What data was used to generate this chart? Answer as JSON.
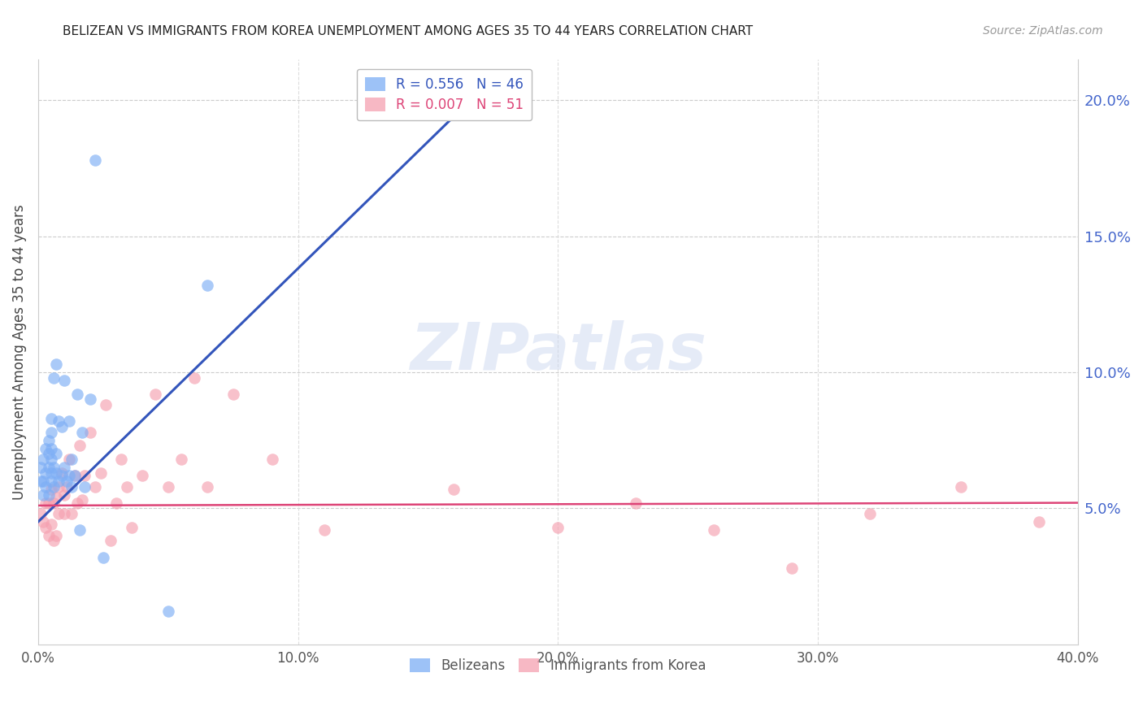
{
  "title": "BELIZEAN VS IMMIGRANTS FROM KOREA UNEMPLOYMENT AMONG AGES 35 TO 44 YEARS CORRELATION CHART",
  "source": "Source: ZipAtlas.com",
  "ylabel": "Unemployment Among Ages 35 to 44 years",
  "xlim": [
    0.0,
    0.4
  ],
  "ylim": [
    0.0,
    0.215
  ],
  "xticks": [
    0.0,
    0.1,
    0.2,
    0.3,
    0.4
  ],
  "xtick_labels": [
    "0.0%",
    "10.0%",
    "20.0%",
    "30.0%",
    "40.0%"
  ],
  "yticks_right": [
    0.05,
    0.1,
    0.15,
    0.2
  ],
  "ytick_labels_right": [
    "5.0%",
    "10.0%",
    "15.0%",
    "20.0%"
  ],
  "blue_color": "#7daef5",
  "pink_color": "#f5a0b0",
  "blue_line_color": "#3355bb",
  "pink_line_color": "#dd4477",
  "legend_R_blue": "R = 0.556",
  "legend_N_blue": "N = 46",
  "legend_R_pink": "R = 0.007",
  "legend_N_pink": "N = 51",
  "watermark": "ZIPatlas",
  "blue_points_x": [
    0.001,
    0.001,
    0.002,
    0.002,
    0.002,
    0.003,
    0.003,
    0.003,
    0.004,
    0.004,
    0.004,
    0.004,
    0.005,
    0.005,
    0.005,
    0.005,
    0.005,
    0.005,
    0.006,
    0.006,
    0.006,
    0.007,
    0.007,
    0.007,
    0.008,
    0.008,
    0.009,
    0.009,
    0.01,
    0.01,
    0.011,
    0.012,
    0.012,
    0.013,
    0.013,
    0.014,
    0.015,
    0.016,
    0.017,
    0.018,
    0.02,
    0.022,
    0.025,
    0.05,
    0.065,
    0.15
  ],
  "blue_points_y": [
    0.06,
    0.065,
    0.055,
    0.06,
    0.068,
    0.058,
    0.063,
    0.072,
    0.055,
    0.065,
    0.07,
    0.075,
    0.06,
    0.063,
    0.068,
    0.072,
    0.078,
    0.083,
    0.058,
    0.065,
    0.098,
    0.063,
    0.07,
    0.103,
    0.06,
    0.082,
    0.062,
    0.08,
    0.065,
    0.097,
    0.06,
    0.062,
    0.082,
    0.058,
    0.068,
    0.062,
    0.092,
    0.042,
    0.078,
    0.058,
    0.09,
    0.178,
    0.032,
    0.012,
    0.132,
    0.197
  ],
  "pink_points_x": [
    0.001,
    0.002,
    0.003,
    0.003,
    0.004,
    0.004,
    0.005,
    0.005,
    0.006,
    0.006,
    0.007,
    0.007,
    0.008,
    0.008,
    0.009,
    0.01,
    0.01,
    0.011,
    0.012,
    0.013,
    0.014,
    0.015,
    0.016,
    0.017,
    0.018,
    0.02,
    0.022,
    0.024,
    0.026,
    0.028,
    0.03,
    0.032,
    0.034,
    0.036,
    0.04,
    0.045,
    0.05,
    0.055,
    0.06,
    0.065,
    0.075,
    0.09,
    0.11,
    0.16,
    0.2,
    0.23,
    0.26,
    0.29,
    0.32,
    0.355,
    0.385
  ],
  "pink_points_y": [
    0.048,
    0.045,
    0.043,
    0.052,
    0.04,
    0.052,
    0.044,
    0.057,
    0.038,
    0.052,
    0.04,
    0.054,
    0.048,
    0.058,
    0.063,
    0.048,
    0.055,
    0.058,
    0.068,
    0.048,
    0.062,
    0.052,
    0.073,
    0.053,
    0.062,
    0.078,
    0.058,
    0.063,
    0.088,
    0.038,
    0.052,
    0.068,
    0.058,
    0.043,
    0.062,
    0.092,
    0.058,
    0.068,
    0.098,
    0.058,
    0.092,
    0.068,
    0.042,
    0.057,
    0.043,
    0.052,
    0.042,
    0.028,
    0.048,
    0.058,
    0.045
  ],
  "blue_trend_x": [
    0.0,
    0.175
  ],
  "blue_trend_y": [
    0.045,
    0.208
  ],
  "pink_trend_x": [
    0.0,
    0.4
  ],
  "pink_trend_y": [
    0.051,
    0.052
  ]
}
